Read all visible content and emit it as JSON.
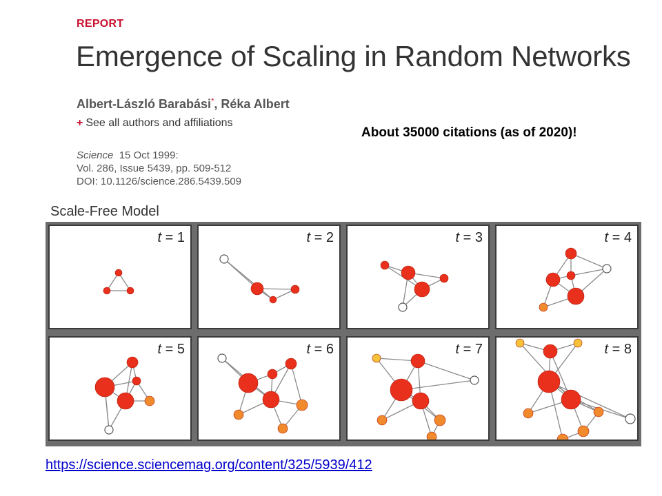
{
  "article": {
    "section_label": "REPORT",
    "title": "Emergence of Scaling in Random Networks",
    "author1": "Albert-László Barabási",
    "author1_mark": "*",
    "author2": ", Réka Albert",
    "see_all": "See all authors and affiliations",
    "journal": "Science",
    "date": "15 Oct 1999:",
    "volume": "Vol. 286, Issue 5439, pp. 509-512",
    "doi": "DOI: 10.1126/science.286.5439.509"
  },
  "callout": "About 35000 citations (as of 2020)!",
  "figure": {
    "title": "Scale-Free Model",
    "panels": [
      {
        "t": "1"
      },
      {
        "t": "2"
      },
      {
        "t": "3"
      },
      {
        "t": "4"
      },
      {
        "t": "5"
      },
      {
        "t": "6"
      },
      {
        "t": "7"
      },
      {
        "t": "8"
      }
    ]
  },
  "link": "https://science.sciencemag.org/content/325/5939/412",
  "colors": {
    "accent": "#c8102e",
    "node_red": "#e8301c",
    "node_orange": "#f08a2c",
    "node_yellow": "#f5c23a",
    "link": "#0000cc"
  }
}
